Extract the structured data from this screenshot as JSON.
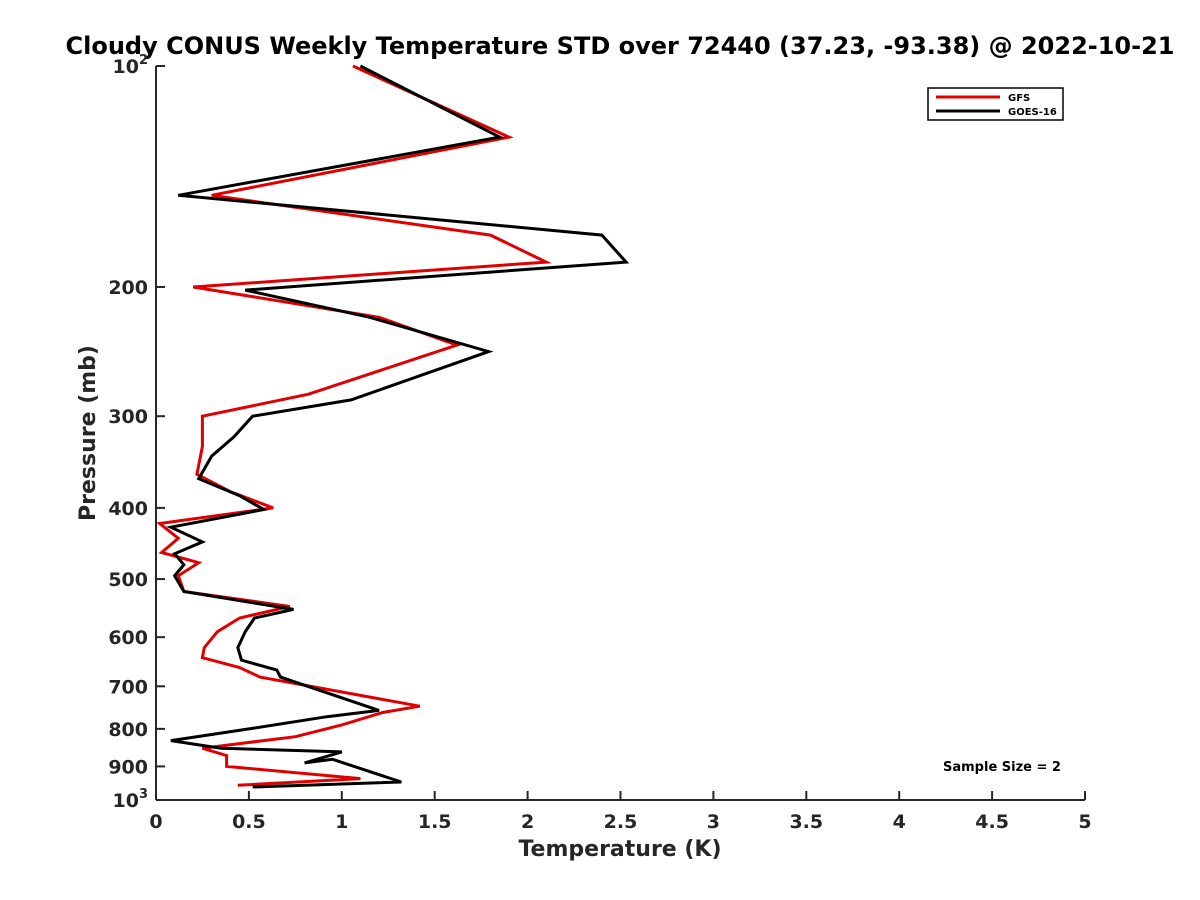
{
  "chart_data": {
    "type": "line",
    "title": "Cloudy CONUS Weekly Temperature STD over 72440 (37.23, -93.38) @ 2022-10-21",
    "xlabel": "Temperature (K)",
    "ylabel": "Pressure (mb)",
    "xlim": [
      0,
      5
    ],
    "ylim": [
      100,
      1000
    ],
    "y_scale": "log",
    "y_reversed": true,
    "grid": false,
    "legend_position": "top-right",
    "x_ticks": [
      0,
      0.5,
      1,
      1.5,
      2,
      2.5,
      3,
      3.5,
      4,
      4.5,
      5
    ],
    "x_tick_labels": [
      "0",
      "0.5",
      "1",
      "1.5",
      "2",
      "2.5",
      "3",
      "3.5",
      "4",
      "4.5",
      "5"
    ],
    "y_ticks": [
      100,
      200,
      300,
      400,
      500,
      600,
      700,
      800,
      900,
      1000
    ],
    "y_tick_labels": [
      {
        "base": "10",
        "sup": "2"
      },
      {
        "base": "200",
        "sup": ""
      },
      {
        "base": "300",
        "sup": ""
      },
      {
        "base": "400",
        "sup": ""
      },
      {
        "base": "500",
        "sup": ""
      },
      {
        "base": "600",
        "sup": ""
      },
      {
        "base": "700",
        "sup": ""
      },
      {
        "base": "800",
        "sup": ""
      },
      {
        "base": "900",
        "sup": ""
      },
      {
        "base": "10",
        "sup": "3"
      }
    ],
    "annotation": "Sample Size = 2",
    "series": [
      {
        "name": "GFS",
        "color": "#e00000",
        "points": [
          [
            1.06,
            100
          ],
          [
            1.9,
            125
          ],
          [
            0.3,
            150
          ],
          [
            1.8,
            170
          ],
          [
            2.1,
            185
          ],
          [
            0.2,
            200
          ],
          [
            1.2,
            220
          ],
          [
            1.62,
            240
          ],
          [
            0.82,
            280
          ],
          [
            0.25,
            300
          ],
          [
            0.25,
            330
          ],
          [
            0.22,
            360
          ],
          [
            0.4,
            380
          ],
          [
            0.63,
            400
          ],
          [
            0.02,
            420
          ],
          [
            0.12,
            440
          ],
          [
            0.03,
            460
          ],
          [
            0.23,
            475
          ],
          [
            0.12,
            495
          ],
          [
            0.15,
            520
          ],
          [
            0.72,
            545
          ],
          [
            0.45,
            565
          ],
          [
            0.33,
            590
          ],
          [
            0.26,
            620
          ],
          [
            0.25,
            640
          ],
          [
            0.45,
            660
          ],
          [
            0.56,
            680
          ],
          [
            1.42,
            745
          ],
          [
            1.22,
            760
          ],
          [
            1.0,
            790
          ],
          [
            0.75,
            820
          ],
          [
            0.25,
            850
          ],
          [
            0.38,
            870
          ],
          [
            0.38,
            900
          ],
          [
            1.1,
            935
          ],
          [
            0.44,
            955
          ]
        ]
      },
      {
        "name": "GOES-16",
        "color": "#000000",
        "points": [
          [
            1.1,
            100
          ],
          [
            1.85,
            125
          ],
          [
            0.12,
            150
          ],
          [
            2.4,
            170
          ],
          [
            2.53,
            185
          ],
          [
            0.48,
            202
          ],
          [
            1.15,
            220
          ],
          [
            1.79,
            245
          ],
          [
            1.05,
            285
          ],
          [
            0.52,
            300
          ],
          [
            0.42,
            320
          ],
          [
            0.3,
            340
          ],
          [
            0.23,
            365
          ],
          [
            0.45,
            385
          ],
          [
            0.58,
            402
          ],
          [
            0.08,
            425
          ],
          [
            0.25,
            445
          ],
          [
            0.1,
            462
          ],
          [
            0.15,
            478
          ],
          [
            0.1,
            495
          ],
          [
            0.15,
            520
          ],
          [
            0.74,
            550
          ],
          [
            0.53,
            565
          ],
          [
            0.48,
            590
          ],
          [
            0.44,
            620
          ],
          [
            0.46,
            645
          ],
          [
            0.65,
            665
          ],
          [
            0.67,
            680
          ],
          [
            1.2,
            755
          ],
          [
            0.92,
            770
          ],
          [
            0.5,
            800
          ],
          [
            0.08,
            830
          ],
          [
            0.35,
            850
          ],
          [
            1.0,
            860
          ],
          [
            0.8,
            890
          ],
          [
            0.95,
            880
          ],
          [
            1.32,
            945
          ],
          [
            0.52,
            960
          ]
        ]
      }
    ]
  }
}
